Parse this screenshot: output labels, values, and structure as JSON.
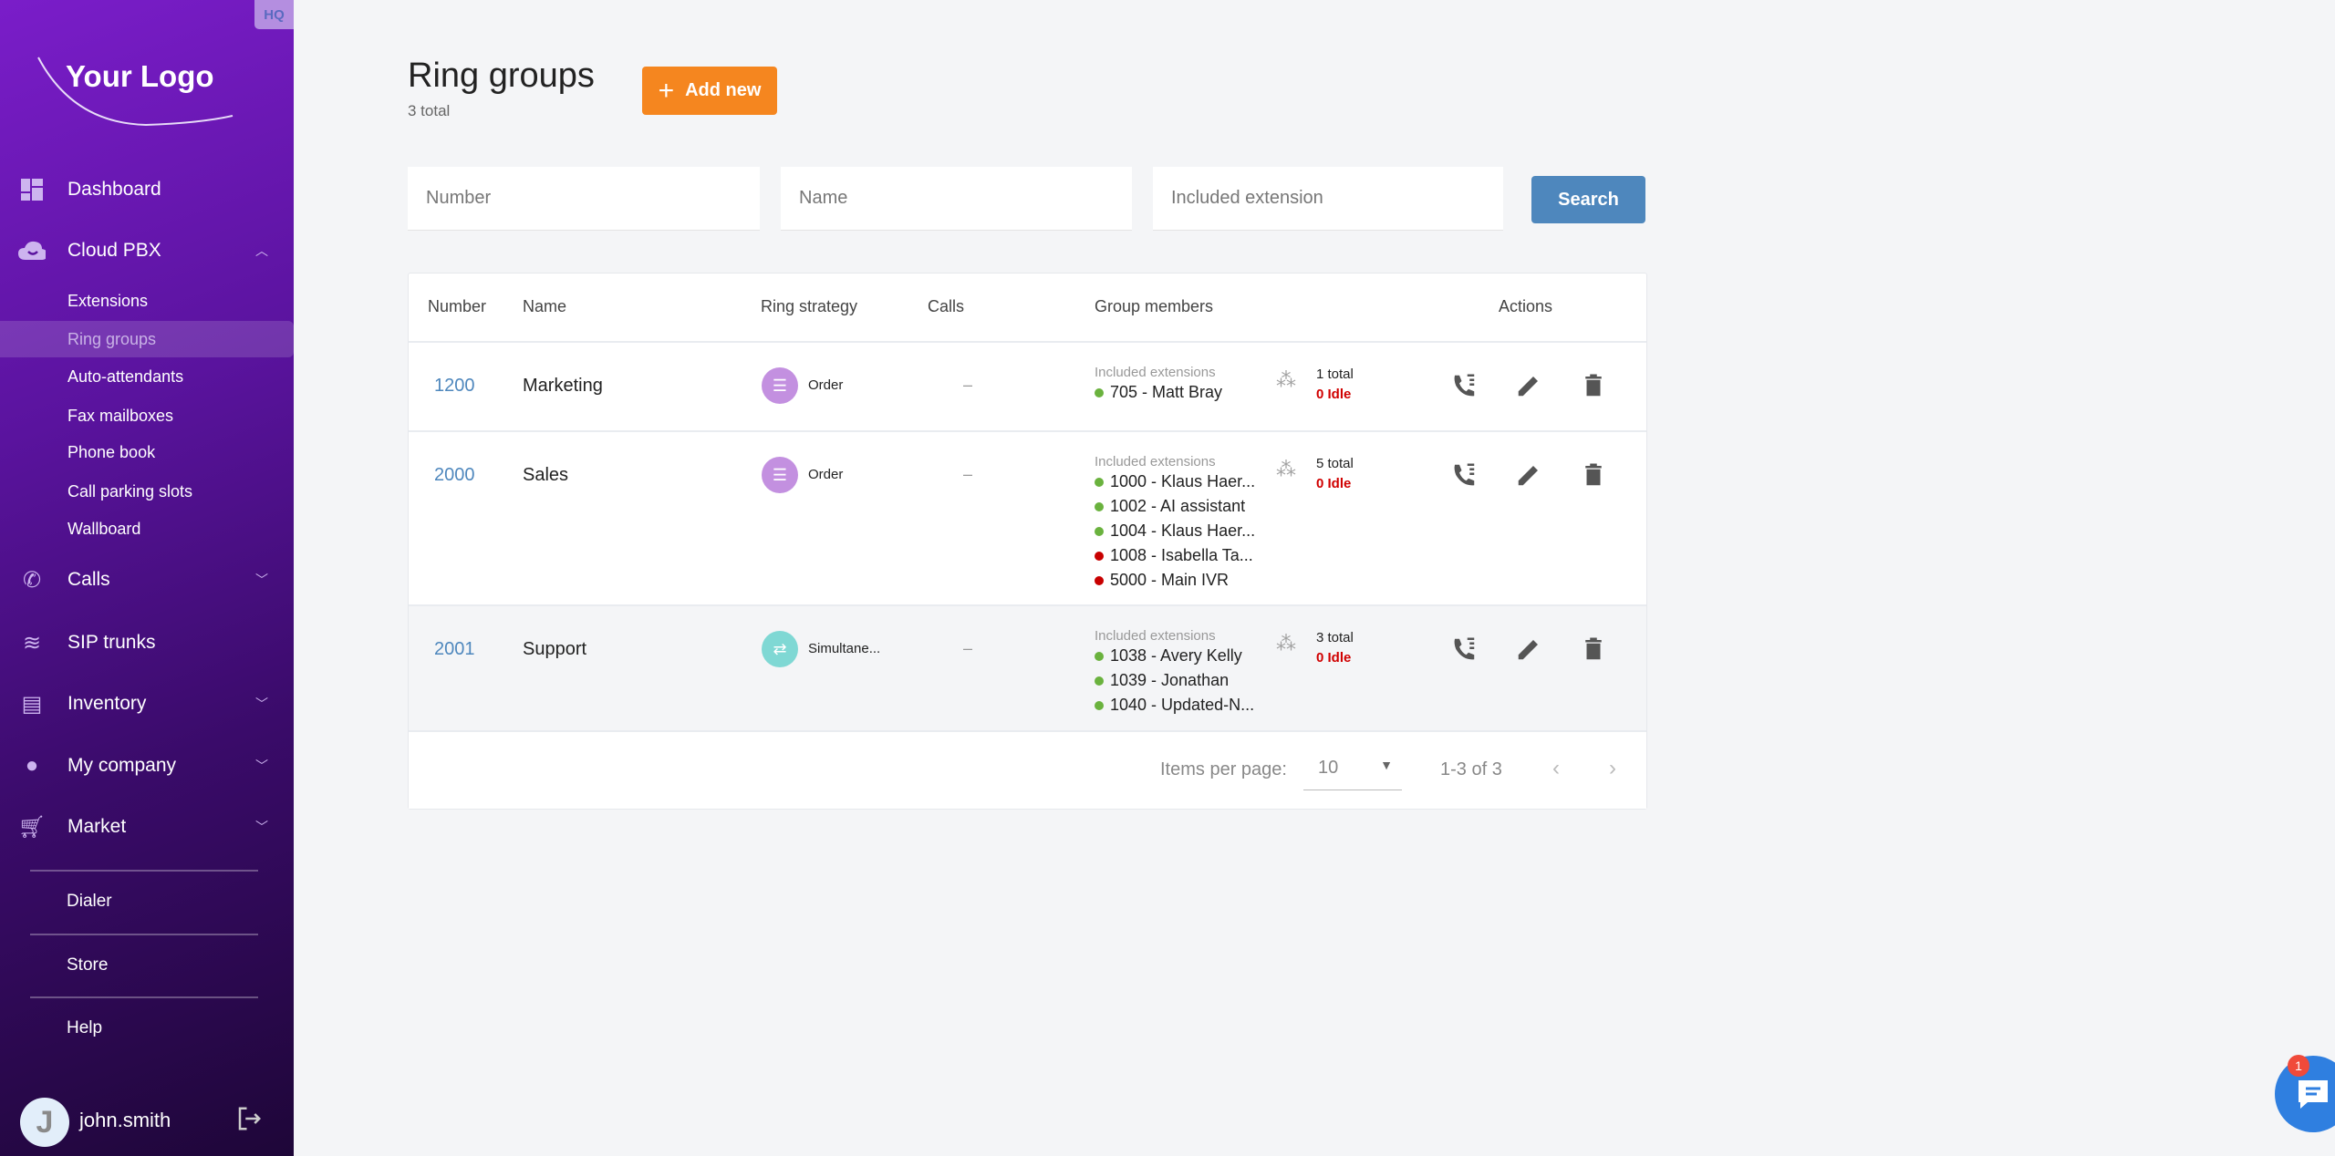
{
  "sidebar": {
    "hq_badge": "HQ",
    "logo": "Your Logo",
    "items": [
      {
        "label": "Dashboard",
        "icon": "dashboard-icon"
      },
      {
        "label": "Cloud PBX",
        "icon": "cloud-icon",
        "expanded": true,
        "children": [
          "Extensions",
          "Ring groups",
          "Auto-attendants",
          "Fax mailboxes",
          "Phone book",
          "Call parking slots",
          "Wallboard"
        ],
        "active_child": "Ring groups"
      },
      {
        "label": "Calls",
        "icon": "phone-icon"
      },
      {
        "label": "SIP trunks",
        "icon": "sip-trunks-icon"
      },
      {
        "label": "Inventory",
        "icon": "inventory-icon"
      },
      {
        "label": "My company",
        "icon": "account-icon"
      },
      {
        "label": "Market",
        "icon": "cart-icon"
      }
    ],
    "links": [
      "Dialer",
      "Store",
      "Help"
    ],
    "user": {
      "initial": "J",
      "name": "john.smith"
    }
  },
  "header": {
    "title": "Ring groups",
    "subtitle": "3 total",
    "add_label": "Add new"
  },
  "filters": {
    "number_placeholder": "Number",
    "name_placeholder": "Name",
    "ext_placeholder": "Included extension",
    "search_label": "Search"
  },
  "table": {
    "columns": [
      "Number",
      "Name",
      "Ring strategy",
      "Calls",
      "Group members",
      "Actions"
    ],
    "included_label": "Included extensions",
    "rows": [
      {
        "number": "1200",
        "name": "Marketing",
        "strategy": "Order",
        "calls": "–",
        "members": [
          {
            "label": "705 - Matt Bray",
            "status": "green"
          }
        ],
        "total": "1 total",
        "idle": "0 Idle"
      },
      {
        "number": "2000",
        "name": "Sales",
        "strategy": "Order",
        "calls": "–",
        "members": [
          {
            "label": "1000 - Klaus Haer...",
            "status": "green"
          },
          {
            "label": "1002 - AI assistant",
            "status": "green"
          },
          {
            "label": "1004 - Klaus Haer...",
            "status": "green"
          },
          {
            "label": "1008 - Isabella Ta...",
            "status": "red"
          },
          {
            "label": "5000 - Main IVR",
            "status": "red"
          }
        ],
        "total": "5 total",
        "idle": "0 Idle"
      },
      {
        "number": "2001",
        "name": "Support",
        "strategy": "Simultane...",
        "calls": "–",
        "members": [
          {
            "label": "1038 - Avery Kelly",
            "status": "green"
          },
          {
            "label": "1039 - Jonathan",
            "status": "green"
          },
          {
            "label": "1040 - Updated-N...",
            "status": "green"
          }
        ],
        "total": "3 total",
        "idle": "0 Idle"
      }
    ]
  },
  "pagination": {
    "items_per_page_label": "Items per page:",
    "page_size": "10",
    "range": "1-3 of 3"
  },
  "chat": {
    "badge": "1"
  },
  "colors": {
    "accent": "#4e87bd",
    "add": "#f5861f",
    "green": "#6ab23e",
    "red": "#c80000",
    "order": "#c390e0",
    "simultaneous": "#7fd8d4"
  }
}
